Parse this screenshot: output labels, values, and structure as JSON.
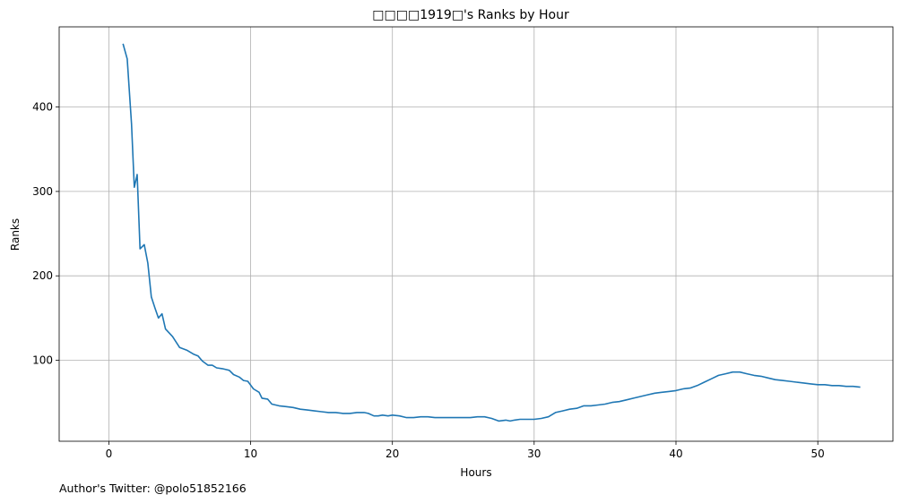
{
  "footer": "Author's Twitter: @polo51852166",
  "chart_data": {
    "type": "line",
    "title": "□□□□1919□'s Ranks by Hour",
    "xlabel": "Hours",
    "ylabel": "Ranks",
    "xlim": [
      -3.5,
      55.3
    ],
    "ylim": [
      4,
      495
    ],
    "xticks": [
      0,
      10,
      20,
      30,
      40,
      50
    ],
    "yticks": [
      100,
      200,
      300,
      400
    ],
    "grid": true,
    "series": [
      {
        "color": "#1f77b4",
        "points": [
          [
            1.0,
            475
          ],
          [
            1.3,
            457
          ],
          [
            1.6,
            380
          ],
          [
            1.8,
            305
          ],
          [
            2.0,
            320
          ],
          [
            2.2,
            232
          ],
          [
            2.5,
            237
          ],
          [
            2.75,
            215
          ],
          [
            3.0,
            175
          ],
          [
            3.25,
            162
          ],
          [
            3.5,
            150
          ],
          [
            3.75,
            155
          ],
          [
            4.0,
            137
          ],
          [
            4.5,
            128
          ],
          [
            5.0,
            115
          ],
          [
            5.5,
            112
          ],
          [
            6.0,
            107
          ],
          [
            6.3,
            105
          ],
          [
            6.6,
            99
          ],
          [
            7.0,
            94
          ],
          [
            7.3,
            94
          ],
          [
            7.6,
            91
          ],
          [
            8.0,
            90
          ],
          [
            8.5,
            88
          ],
          [
            8.8,
            83
          ],
          [
            9.2,
            80
          ],
          [
            9.5,
            76
          ],
          [
            9.8,
            75
          ],
          [
            10.2,
            66
          ],
          [
            10.6,
            62
          ],
          [
            10.8,
            55
          ],
          [
            11.2,
            54
          ],
          [
            11.5,
            48
          ],
          [
            12.0,
            46
          ],
          [
            12.5,
            45
          ],
          [
            13.0,
            44
          ],
          [
            13.5,
            42
          ],
          [
            14.0,
            41
          ],
          [
            14.5,
            40
          ],
          [
            15.0,
            39
          ],
          [
            15.5,
            38
          ],
          [
            16.0,
            38
          ],
          [
            16.5,
            37
          ],
          [
            17.0,
            37
          ],
          [
            17.5,
            38
          ],
          [
            18.0,
            38
          ],
          [
            18.3,
            37
          ],
          [
            18.7,
            34
          ],
          [
            19.0,
            34
          ],
          [
            19.3,
            35
          ],
          [
            19.7,
            34
          ],
          [
            20.0,
            35
          ],
          [
            20.5,
            34
          ],
          [
            21.0,
            32
          ],
          [
            21.5,
            32
          ],
          [
            22.0,
            33
          ],
          [
            22.5,
            33
          ],
          [
            23.0,
            32
          ],
          [
            24.0,
            32
          ],
          [
            25.0,
            32
          ],
          [
            25.5,
            32
          ],
          [
            26.0,
            33
          ],
          [
            26.5,
            33
          ],
          [
            27.0,
            31
          ],
          [
            27.5,
            28
          ],
          [
            28.0,
            29
          ],
          [
            28.3,
            28
          ],
          [
            28.6,
            29
          ],
          [
            29.0,
            30
          ],
          [
            30.0,
            30
          ],
          [
            30.5,
            31
          ],
          [
            31.0,
            33
          ],
          [
            31.5,
            38
          ],
          [
            32.0,
            40
          ],
          [
            32.5,
            42
          ],
          [
            33.0,
            43
          ],
          [
            33.5,
            46
          ],
          [
            34.0,
            46
          ],
          [
            34.5,
            47
          ],
          [
            35.0,
            48
          ],
          [
            35.5,
            50
          ],
          [
            36.0,
            51
          ],
          [
            36.5,
            53
          ],
          [
            37.0,
            55
          ],
          [
            37.5,
            57
          ],
          [
            38.0,
            59
          ],
          [
            38.5,
            61
          ],
          [
            39.0,
            62
          ],
          [
            39.5,
            63
          ],
          [
            40.0,
            64
          ],
          [
            40.5,
            66
          ],
          [
            41.0,
            67
          ],
          [
            41.5,
            70
          ],
          [
            42.0,
            74
          ],
          [
            42.5,
            78
          ],
          [
            43.0,
            82
          ],
          [
            43.5,
            84
          ],
          [
            44.0,
            86
          ],
          [
            44.5,
            86
          ],
          [
            45.0,
            84
          ],
          [
            45.5,
            82
          ],
          [
            46.0,
            81
          ],
          [
            46.5,
            79
          ],
          [
            47.0,
            77
          ],
          [
            47.5,
            76
          ],
          [
            48.0,
            75
          ],
          [
            48.5,
            74
          ],
          [
            49.0,
            73
          ],
          [
            49.5,
            72
          ],
          [
            50.0,
            71
          ],
          [
            50.5,
            71
          ],
          [
            51.0,
            70
          ],
          [
            51.5,
            70
          ],
          [
            52.0,
            69
          ],
          [
            52.5,
            69
          ],
          [
            53.0,
            68
          ]
        ]
      }
    ]
  }
}
